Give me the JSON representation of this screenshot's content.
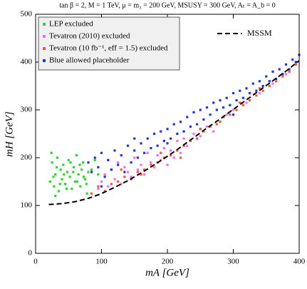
{
  "chart_data": {
    "type": "scatter",
    "title": "tan β = 2,  M = 1 TeV,  μ = m₃ = 200 GeV,  MSUSY = 300 GeV,  Aₜ = A_b = 0",
    "x_label": "mA [GeV]",
    "y_label": "mH [GeV]",
    "xlim": [
      0,
      400
    ],
    "ylim": [
      0,
      500
    ],
    "xticks": [
      0,
      100,
      200,
      300,
      400
    ],
    "yticks": [
      0,
      100,
      200,
      300,
      400,
      500
    ],
    "legend": "upper left",
    "series": [
      {
        "name": "LEP excluded",
        "color": "#22dd22",
        "x": [
          22,
          25,
          28,
          30,
          33,
          35,
          38,
          40,
          42,
          45,
          48,
          50,
          52,
          55,
          58,
          60,
          62,
          65,
          68,
          70,
          72,
          75,
          78,
          80,
          24,
          27,
          32,
          37,
          43,
          47,
          53,
          57,
          63,
          67,
          73,
          77,
          85,
          90,
          95,
          30
        ],
        "values": [
          150,
          190,
          140,
          165,
          200,
          130,
          175,
          155,
          185,
          145,
          170,
          195,
          160,
          135,
          180,
          150,
          205,
          165,
          140,
          175,
          190,
          155,
          125,
          170,
          210,
          160,
          180,
          145,
          165,
          135,
          190,
          170,
          150,
          185,
          160,
          145,
          175,
          195,
          165,
          120
        ]
      },
      {
        "name": "Tevatron (2010) excluded",
        "color": "#ff66ff",
        "x": [
          95,
          100,
          105,
          110,
          115,
          120,
          125,
          130,
          135,
          140,
          145,
          150,
          155,
          160,
          165,
          170,
          175,
          180,
          185,
          190,
          195,
          200,
          205,
          210,
          215,
          220,
          225,
          230,
          240,
          250,
          260,
          270,
          280,
          290,
          300,
          320,
          340,
          360,
          380,
          110
        ],
        "values": [
          135,
          150,
          165,
          140,
          175,
          155,
          190,
          145,
          180,
          170,
          160,
          200,
          175,
          185,
          165,
          210,
          190,
          180,
          205,
          195,
          220,
          185,
          215,
          200,
          235,
          210,
          240,
          225,
          250,
          245,
          265,
          255,
          275,
          290,
          300,
          315,
          335,
          355,
          375,
          195
        ]
      },
      {
        "name": "Blue allowed placeholder",
        "color": "#2233ee",
        "x": [
          80,
          85,
          90,
          95,
          100,
          105,
          110,
          115,
          120,
          125,
          130,
          135,
          140,
          145,
          150,
          155,
          160,
          165,
          170,
          175,
          180,
          185,
          190,
          195,
          200,
          205,
          210,
          215,
          220,
          225,
          230,
          235,
          240,
          245,
          250,
          255,
          260,
          265,
          270,
          275,
          280,
          285,
          290,
          295,
          300,
          305,
          310,
          315,
          320,
          325,
          330,
          335,
          340,
          345,
          350,
          355,
          360,
          365,
          370,
          375,
          380,
          385,
          390,
          395,
          400,
          100,
          150,
          200,
          250,
          300
        ],
        "values": [
          190,
          170,
          200,
          180,
          210,
          160,
          195,
          175,
          215,
          185,
          205,
          170,
          225,
          190,
          215,
          200,
          230,
          210,
          240,
          220,
          250,
          225,
          255,
          235,
          260,
          240,
          270,
          250,
          275,
          255,
          285,
          265,
          295,
          270,
          300,
          280,
          305,
          290,
          315,
          300,
          320,
          305,
          325,
          310,
          335,
          320,
          340,
          325,
          345,
          335,
          355,
          340,
          360,
          350,
          370,
          360,
          380,
          365,
          385,
          375,
          395,
          385,
          405,
          400,
          415,
          140,
          240,
          230,
          260,
          290
        ]
      },
      {
        "name": "Tevatron (10 fb⁻¹, eff = 1.5) excluded",
        "color": "#ff5533",
        "x": [
          85,
          95,
          105,
          115,
          125,
          135,
          145,
          155,
          165,
          175,
          185,
          195,
          205,
          215,
          225,
          235,
          245,
          255,
          265,
          275,
          285,
          295,
          305,
          315,
          325,
          335,
          345,
          355,
          365,
          375,
          385,
          395,
          130,
          160,
          190,
          220,
          250,
          280,
          310,
          340
        ],
        "values": [
          125,
          140,
          130,
          145,
          150,
          160,
          155,
          170,
          175,
          185,
          190,
          200,
          205,
          215,
          225,
          235,
          240,
          255,
          265,
          270,
          285,
          290,
          300,
          310,
          320,
          330,
          340,
          350,
          360,
          370,
          380,
          395,
          175,
          165,
          210,
          200,
          260,
          275,
          315,
          345
        ]
      },
      {
        "name": "MSSM",
        "color": "#000000",
        "style": "dashed",
        "x": [
          20,
          40,
          60,
          80,
          100,
          120,
          140,
          160,
          180,
          200,
          220,
          240,
          260,
          280,
          300,
          320,
          340,
          360,
          380,
          400
        ],
        "values": [
          102,
          104,
          108,
          115,
          125,
          138,
          152,
          168,
          185,
          203,
          222,
          242,
          262,
          281,
          301,
          321,
          341,
          361,
          381,
          403
        ]
      }
    ]
  }
}
